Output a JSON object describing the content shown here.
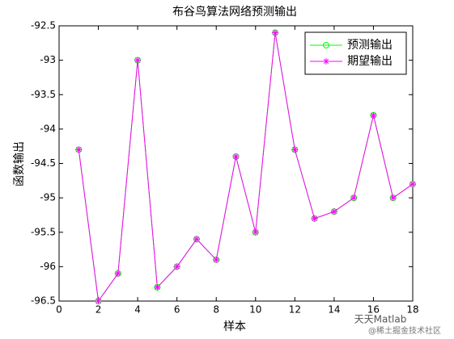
{
  "chart_data": {
    "type": "line",
    "title": "布谷鸟算法网络预测输出",
    "x_label": "样本",
    "y_label": "函数输出",
    "x": [
      1,
      2,
      3,
      4,
      5,
      6,
      7,
      8,
      9,
      10,
      11,
      12,
      13,
      14,
      15,
      16,
      17,
      18
    ],
    "series": [
      {
        "name": "预测输出",
        "color": "#00ff00",
        "marker": "circle",
        "values": [
          -94.3,
          -96.5,
          -96.1,
          -93.0,
          -96.3,
          -96.0,
          -95.6,
          -95.9,
          -94.4,
          -95.5,
          -92.6,
          -94.3,
          -95.3,
          -95.2,
          -95.0,
          -93.8,
          -95.0,
          -94.8
        ]
      },
      {
        "name": "期望输出",
        "color": "#ff00ff",
        "marker": "star",
        "values": [
          -94.3,
          -96.5,
          -96.1,
          -93.0,
          -96.3,
          -96.0,
          -95.6,
          -95.9,
          -94.4,
          -95.5,
          -92.6,
          -94.3,
          -95.3,
          -95.2,
          -95.0,
          -93.8,
          -95.0,
          -94.8
        ]
      }
    ],
    "xlim": [
      0,
      18
    ],
    "xticks": [
      0,
      2,
      4,
      6,
      8,
      10,
      12,
      14,
      16,
      18
    ],
    "ylim": [
      -96.5,
      -92.5
    ],
    "yticks": [
      -96.5,
      -96,
      -95.5,
      -95,
      -94.5,
      -94,
      -93.5,
      -93,
      -92.5
    ],
    "legend": "northeast",
    "watermark": [
      "天天Matlab",
      "@稀土掘金技术社区"
    ]
  }
}
